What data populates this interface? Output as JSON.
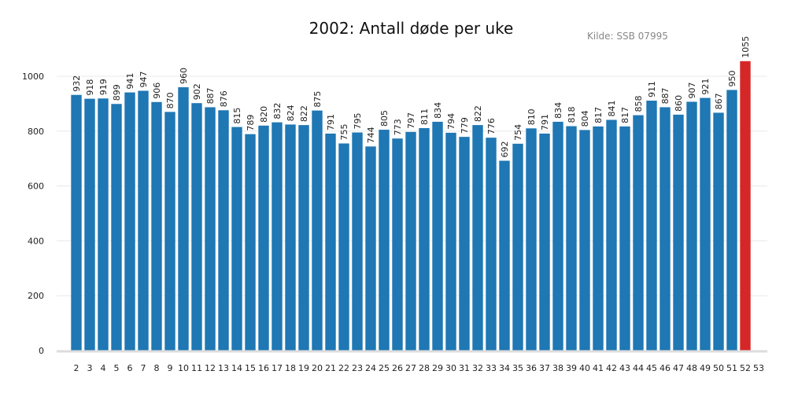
{
  "chart_data": {
    "type": "bar",
    "title": "2002: Antall døde per uke",
    "source": "Kilde: SSB 07995",
    "xlabel": "",
    "ylabel": "",
    "ylim": [
      0,
      1000
    ],
    "yticks": [
      0,
      200,
      400,
      600,
      800,
      1000
    ],
    "grid": "horizontal",
    "x_ticks": [
      "2",
      "3",
      "4",
      "5",
      "6",
      "7",
      "8",
      "9",
      "10",
      "11",
      "12",
      "13",
      "14",
      "15",
      "16",
      "17",
      "18",
      "19",
      "20",
      "21",
      "22",
      "23",
      "24",
      "25",
      "26",
      "27",
      "28",
      "29",
      "30",
      "31",
      "32",
      "33",
      "34",
      "35",
      "36",
      "37",
      "38",
      "39",
      "40",
      "41",
      "42",
      "43",
      "44",
      "45",
      "46",
      "47",
      "48",
      "49",
      "50",
      "51",
      "52",
      "53"
    ],
    "categories": [
      "2",
      "3",
      "4",
      "5",
      "6",
      "7",
      "8",
      "9",
      "10",
      "11",
      "12",
      "13",
      "14",
      "15",
      "16",
      "17",
      "18",
      "19",
      "20",
      "21",
      "22",
      "23",
      "24",
      "25",
      "26",
      "27",
      "28",
      "29",
      "30",
      "31",
      "32",
      "33",
      "34",
      "35",
      "36",
      "37",
      "38",
      "39",
      "40",
      "41",
      "42",
      "43",
      "44",
      "45",
      "46",
      "47",
      "48",
      "49",
      "50",
      "51",
      "52"
    ],
    "values": [
      932,
      918,
      919,
      899,
      941,
      947,
      906,
      870,
      960,
      902,
      887,
      876,
      815,
      789,
      820,
      832,
      824,
      822,
      875,
      791,
      755,
      795,
      744,
      805,
      773,
      797,
      811,
      834,
      794,
      779,
      822,
      776,
      692,
      754,
      810,
      791,
      834,
      818,
      804,
      817,
      841,
      817,
      858,
      911,
      887,
      860,
      907,
      921,
      867,
      950,
      1055
    ],
    "colors": {
      "default": "#1f77b4",
      "highlight": "#d62728"
    },
    "highlight_category": "52"
  }
}
